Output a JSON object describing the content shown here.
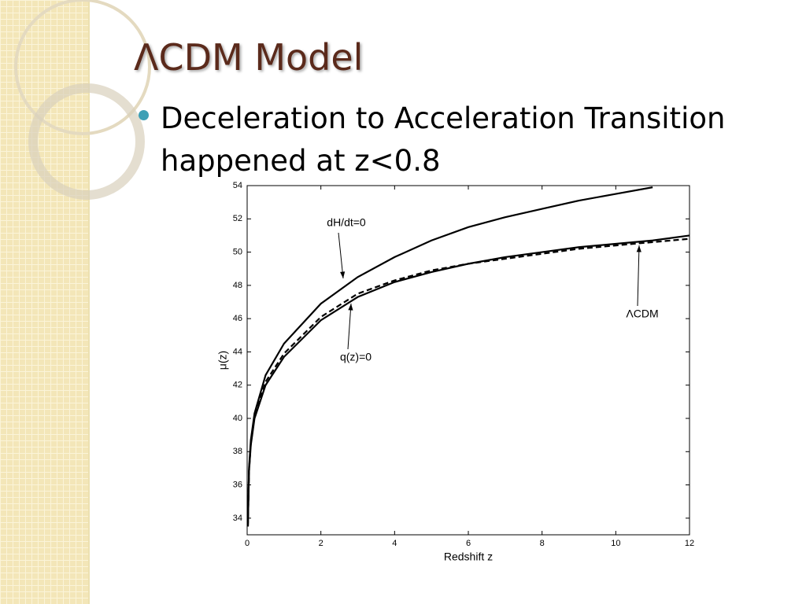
{
  "slide_title": "ΛCDM Model",
  "bullet": "Deceleration to Acceleration Transition happened at z<0.8",
  "chart_data": {
    "type": "line",
    "xlabel": "Redshift z",
    "ylabel": "μ(z)",
    "x": [
      0.02,
      0.05,
      0.1,
      0.2,
      0.5,
      1,
      2,
      3,
      4,
      5,
      6,
      7,
      8,
      9,
      10,
      11,
      12
    ],
    "series": [
      {
        "name": "dH/dt=0",
        "color": "#000000",
        "style": "solid",
        "values": [
          33.5,
          37,
          38.7,
          40.3,
          42.6,
          44.5,
          46.9,
          48.5,
          49.7,
          50.7,
          51.5,
          52.1,
          52.6,
          53.1,
          53.5,
          53.9,
          null
        ]
      },
      {
        "name": "ΛCDM",
        "color": "#000000",
        "style": "dashed",
        "values": [
          33.5,
          36.8,
          38.5,
          40.1,
          42.2,
          43.9,
          46.1,
          47.5,
          48.3,
          48.9,
          49.3,
          49.6,
          49.9,
          50.2,
          50.4,
          50.6,
          50.8
        ]
      },
      {
        "name": "q(z)=0",
        "color": "#000000",
        "style": "solid",
        "values": [
          33.5,
          36.8,
          38.4,
          40.0,
          42.0,
          43.7,
          45.9,
          47.3,
          48.2,
          48.8,
          49.3,
          49.7,
          50.0,
          50.3,
          50.5,
          50.7,
          51.0
        ]
      }
    ],
    "xlim": [
      0,
      12
    ],
    "xticks": [
      0,
      2,
      4,
      6,
      8,
      10,
      12
    ],
    "ylim": [
      33,
      54
    ],
    "yticks": [
      34,
      36,
      38,
      40,
      42,
      44,
      46,
      48,
      50,
      52,
      54
    ],
    "grid": false
  }
}
